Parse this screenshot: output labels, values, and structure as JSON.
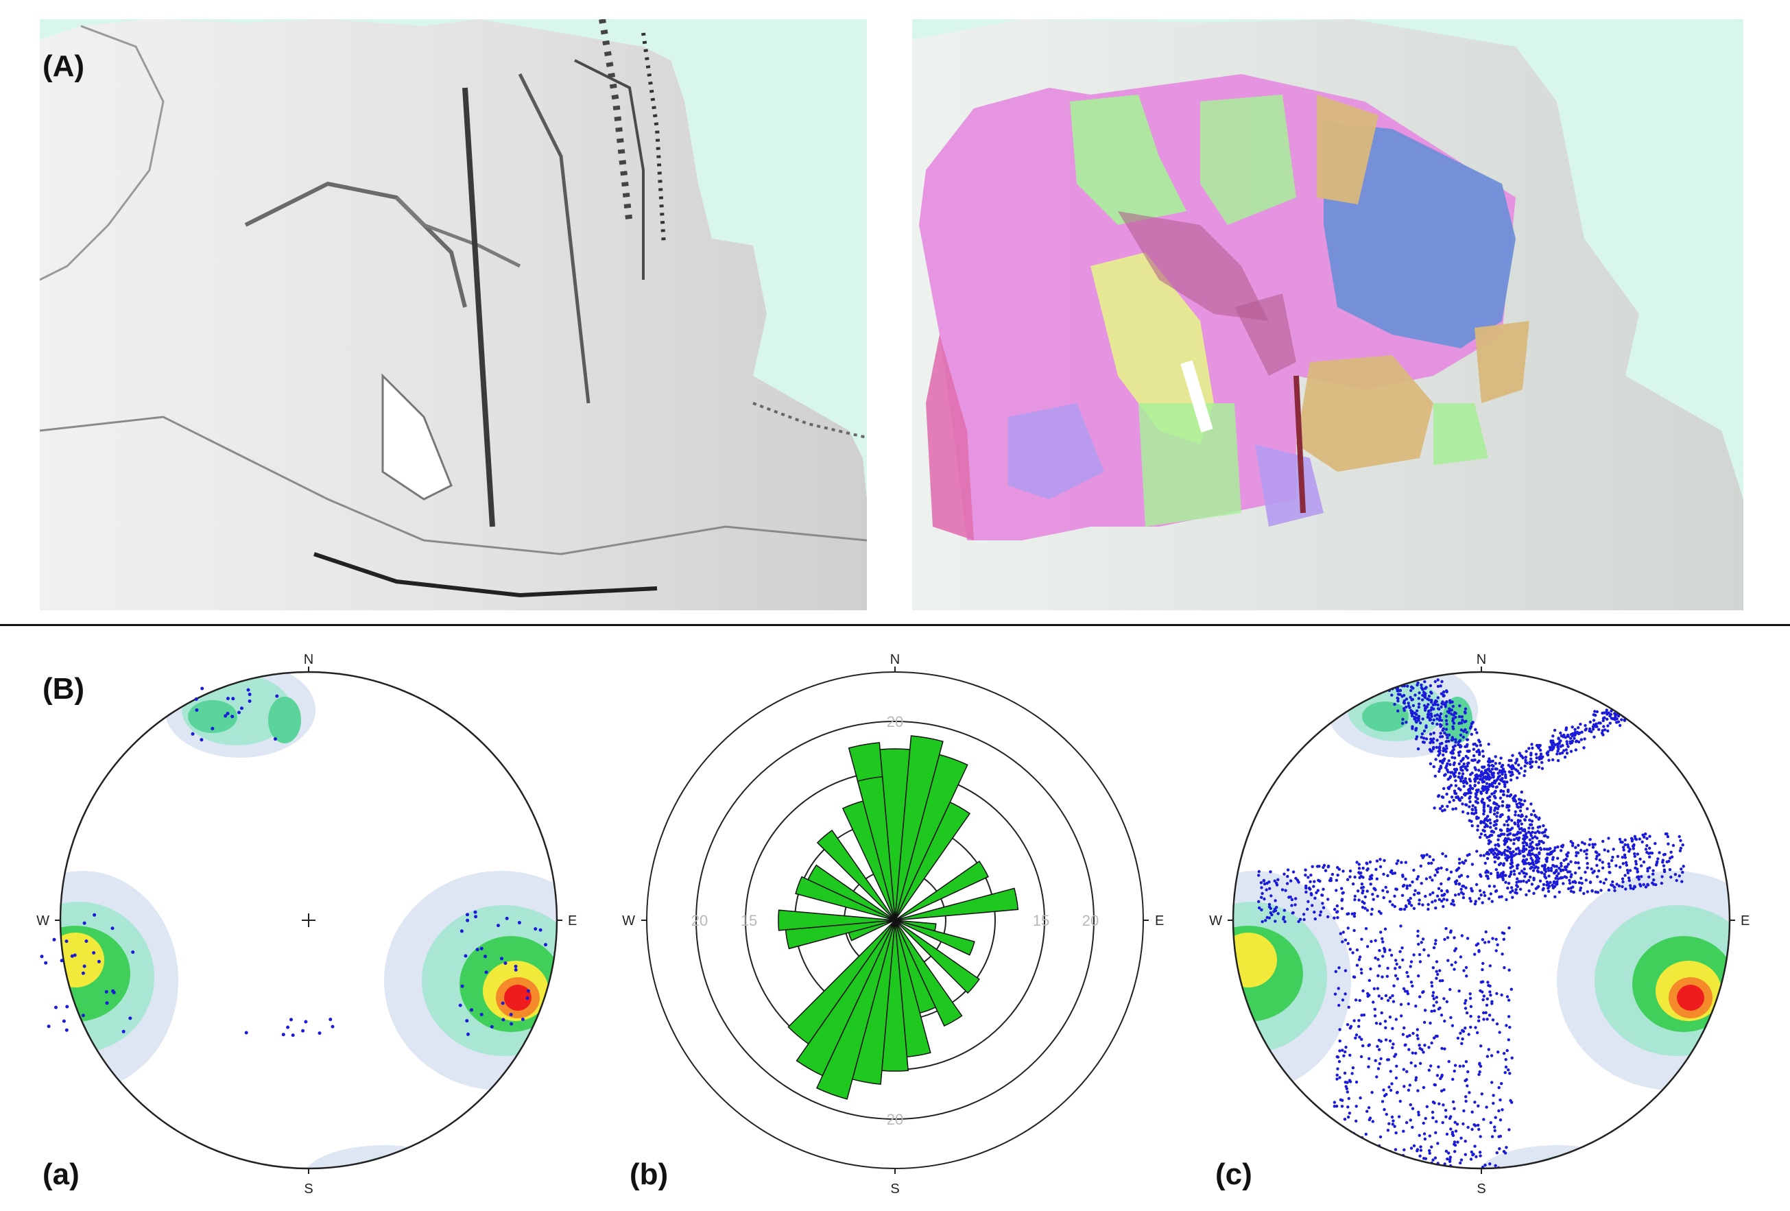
{
  "panel_a": {
    "label": "(A)",
    "left_view": "grayscale-shaded-point-cloud",
    "right_view": "point-cloud-with-segmented-facets",
    "background_color": "#d9f6ee",
    "facet_colors": [
      "#e58be0",
      "#a9ee9a",
      "#e6f08c",
      "#6f8fd8",
      "#d9b87c",
      "#b59af0",
      "#e070b0"
    ]
  },
  "panel_b": {
    "label": "(B)",
    "plots": [
      {
        "label": "(a)",
        "type": "stereonet-pole-density",
        "directions": {
          "n": "N",
          "s": "S",
          "e": "E",
          "w": "W"
        },
        "density_colors": [
          "#dde6f2",
          "#a9e6d4",
          "#5ad49a",
          "#3fcf5a",
          "#f2ea3a",
          "#f58a2a",
          "#ee1c1c"
        ]
      },
      {
        "label": "(b)",
        "type": "rose-diagram",
        "directions": {
          "n": "N",
          "s": "S",
          "e": "E",
          "w": "W"
        },
        "ring_labels_west": [
          "20",
          "15"
        ],
        "ring_labels_east": [
          "15",
          "20"
        ],
        "ring_label_north": "20",
        "ring_label_south": "20",
        "petal_color": "#1ec81e"
      },
      {
        "label": "(c)",
        "type": "stereonet-poles-with-planes",
        "directions": {
          "n": "N",
          "s": "S",
          "e": "E",
          "w": "W"
        },
        "point_color": "#1a1ad8"
      }
    ]
  }
}
